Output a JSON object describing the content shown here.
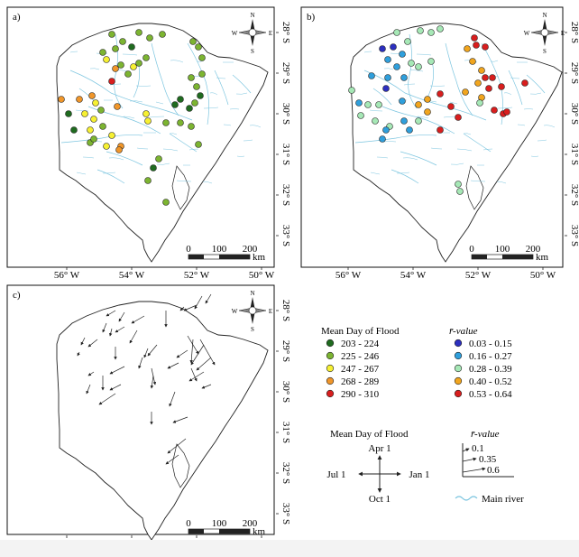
{
  "panels": {
    "a": {
      "label": "a)"
    },
    "b": {
      "label": "b)"
    },
    "c": {
      "label": "c)"
    }
  },
  "lat_labels": [
    "28° S",
    "29° S",
    "30° S",
    "31° S",
    "32° S",
    "33° S"
  ],
  "lon_labels": [
    "56° W",
    "54° W",
    "52° W",
    "50° W"
  ],
  "compass": {
    "n": "N",
    "s": "S",
    "e": "E",
    "w": "W"
  },
  "scalebar": {
    "ticks": [
      "0",
      "100",
      "200"
    ],
    "unit": "km"
  },
  "legend_mean_day": {
    "title": "Mean Day of Flood",
    "items": [
      {
        "label": "203 - 224",
        "color": "#1f6b1f"
      },
      {
        "label": "225 - 246",
        "color": "#7cb431"
      },
      {
        "label": "247 - 267",
        "color": "#f6f032"
      },
      {
        "label": "268 - 289",
        "color": "#f0962a"
      },
      {
        "label": "290 - 310",
        "color": "#d81e1e"
      }
    ]
  },
  "legend_r_value": {
    "title": "r̄-value",
    "items": [
      {
        "label": "0.03 - 0.15",
        "color": "#2c2fbf"
      },
      {
        "label": "0.16 - 0.27",
        "color": "#2f9fdc"
      },
      {
        "label": "0.28 - 0.39",
        "color": "#a6e8b6"
      },
      {
        "label": "0.40 - 0.52",
        "color": "#f1a51e"
      },
      {
        "label": "0.53 - 0.64",
        "color": "#d81e1e"
      }
    ]
  },
  "compass_legend": {
    "title": "Mean Day of Flood",
    "top": "Apr 1",
    "bottom": "Oct 1",
    "left": "Jul 1",
    "right": "Jan 1"
  },
  "arrow_legend": {
    "title": "r̄-value",
    "values": [
      "0.1",
      "0.35",
      "0.6"
    ]
  },
  "river_legend": {
    "label": "Main river",
    "color": "#7ec6e0"
  },
  "colors": {
    "river": "#7ec6e0",
    "outline": "#222222"
  }
}
